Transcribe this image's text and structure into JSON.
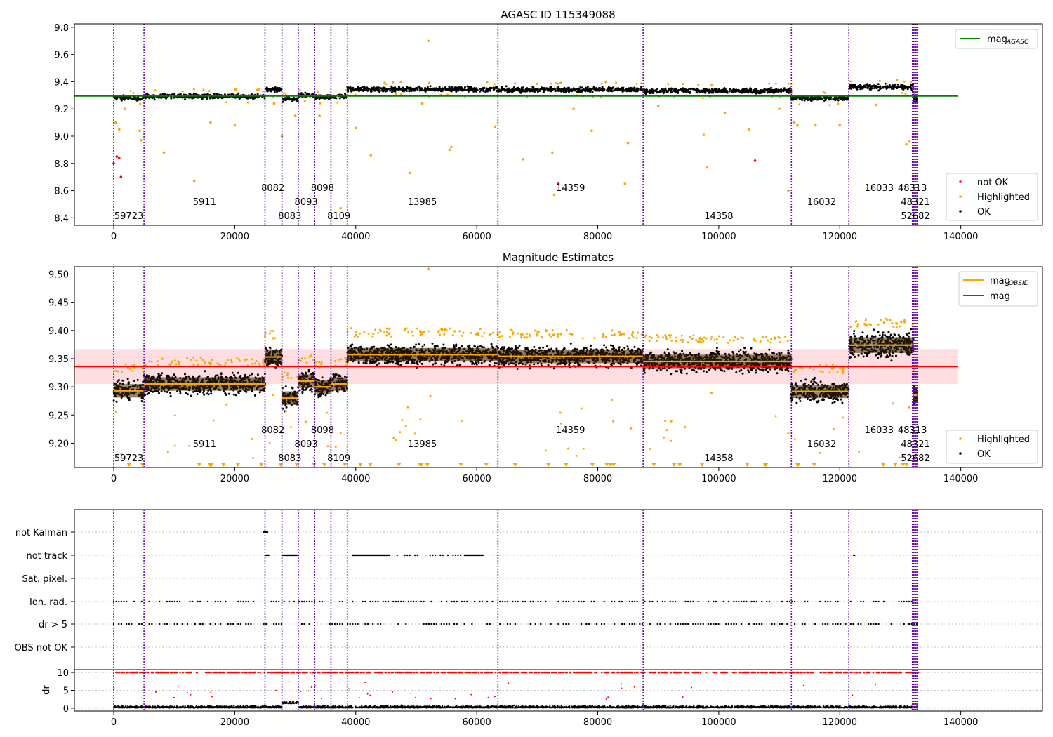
{
  "chart_data": [
    {
      "type": "scatter",
      "title": "AGASC ID 115349088",
      "xlim": [
        -6500,
        153500
      ],
      "ylim": [
        8.345,
        9.825
      ],
      "x_ticks": [
        0,
        20000,
        40000,
        60000,
        80000,
        100000,
        120000,
        140000
      ],
      "x_tick_labels": [
        "0",
        "20000",
        "40000",
        "60000",
        "80000",
        "100000",
        "120000",
        "140000"
      ],
      "y_ticks": [
        8.4,
        8.6,
        8.8,
        9.0,
        9.2,
        9.4,
        9.6,
        9.8
      ],
      "y_tick_labels": [
        "8.4",
        "8.6",
        "8.8",
        "9.0",
        "9.2",
        "9.4",
        "9.6",
        "9.8"
      ],
      "legend_upper": {
        "placement": "top-right",
        "entries": [
          {
            "label": "mag",
            "sub": "AGASC",
            "color": "#008000"
          }
        ]
      },
      "legend_lower": {
        "placement": "bottom-right",
        "entries": [
          {
            "label": "not OK",
            "color": "#ff0000"
          },
          {
            "label": "Highlighted",
            "color": "#ffa500"
          },
          {
            "label": "OK",
            "color": "#000000"
          }
        ]
      },
      "agasc_mag": 9.295,
      "agasc_line_x": [
        -6500,
        139500
      ],
      "segments": [
        {
          "x0": 0,
          "x1": 5000,
          "mean": 9.293,
          "spread": 0.012
        },
        {
          "x0": 5000,
          "x1": 25000,
          "mean": 9.305,
          "spread": 0.012
        },
        {
          "x0": 25000,
          "x1": 27800,
          "mean": 9.353,
          "spread": 0.012
        },
        {
          "x0": 27800,
          "x1": 30500,
          "mean": 9.28,
          "spread": 0.012
        },
        {
          "x0": 30500,
          "x1": 33200,
          "mean": 9.31,
          "spread": 0.012
        },
        {
          "x0": 33200,
          "x1": 35900,
          "mean": 9.3,
          "spread": 0.012
        },
        {
          "x0": 35900,
          "x1": 38600,
          "mean": 9.305,
          "spread": 0.012
        },
        {
          "x0": 38600,
          "x1": 63500,
          "mean": 9.357,
          "spread": 0.012
        },
        {
          "x0": 63500,
          "x1": 87500,
          "mean": 9.354,
          "spread": 0.012
        },
        {
          "x0": 87500,
          "x1": 112000,
          "mean": 9.345,
          "spread": 0.012
        },
        {
          "x0": 112000,
          "x1": 121500,
          "mean": 9.292,
          "spread": 0.012
        },
        {
          "x0": 121500,
          "x1": 132200,
          "mean": 9.374,
          "spread": 0.014
        },
        {
          "x0": 132200,
          "x1": 132800,
          "mean": 9.285,
          "spread": 0.012
        }
      ],
      "not_ok_points": [
        {
          "x": 0,
          "y": 8.8
        },
        {
          "x": 500,
          "y": 8.85
        },
        {
          "x": 900,
          "y": 8.84
        },
        {
          "x": 1200,
          "y": 8.7
        },
        {
          "x": 73500,
          "y": 8.65
        },
        {
          "x": 106000,
          "y": 8.82
        }
      ],
      "highlighted_points": [
        {
          "x": 52000,
          "y": 9.7
        },
        {
          "x": 300,
          "y": 9.1
        },
        {
          "x": 900,
          "y": 9.05
        },
        {
          "x": 1800,
          "y": 9.2
        },
        {
          "x": 4300,
          "y": 9.04
        },
        {
          "x": 4500,
          "y": 8.97
        },
        {
          "x": 8300,
          "y": 8.88
        },
        {
          "x": 13300,
          "y": 8.67
        },
        {
          "x": 16000,
          "y": 9.1
        },
        {
          "x": 20000,
          "y": 9.08
        },
        {
          "x": 26500,
          "y": 9.24
        },
        {
          "x": 27800,
          "y": 9.0
        },
        {
          "x": 30000,
          "y": 9.15
        },
        {
          "x": 34000,
          "y": 9.15
        },
        {
          "x": 37500,
          "y": 8.47
        },
        {
          "x": 40000,
          "y": 9.06
        },
        {
          "x": 42500,
          "y": 8.86
        },
        {
          "x": 49000,
          "y": 8.73
        },
        {
          "x": 51000,
          "y": 9.24
        },
        {
          "x": 55500,
          "y": 8.9
        },
        {
          "x": 55800,
          "y": 8.92
        },
        {
          "x": 63000,
          "y": 9.07
        },
        {
          "x": 67700,
          "y": 8.83
        },
        {
          "x": 72500,
          "y": 8.88
        },
        {
          "x": 72800,
          "y": 8.57
        },
        {
          "x": 76000,
          "y": 9.2
        },
        {
          "x": 79000,
          "y": 9.04
        },
        {
          "x": 84500,
          "y": 8.65
        },
        {
          "x": 85000,
          "y": 8.95
        },
        {
          "x": 90000,
          "y": 9.22
        },
        {
          "x": 97500,
          "y": 9.01
        },
        {
          "x": 98000,
          "y": 8.77
        },
        {
          "x": 101000,
          "y": 9.17
        },
        {
          "x": 105000,
          "y": 9.05
        },
        {
          "x": 110000,
          "y": 9.2
        },
        {
          "x": 112500,
          "y": 9.1
        },
        {
          "x": 113000,
          "y": 9.08
        },
        {
          "x": 116000,
          "y": 9.08
        },
        {
          "x": 120000,
          "y": 9.08
        },
        {
          "x": 126000,
          "y": 9.23
        },
        {
          "x": 131000,
          "y": 8.94
        },
        {
          "x": 131500,
          "y": 8.96
        },
        {
          "x": 111500,
          "y": 8.6
        }
      ],
      "obsid_labels": [
        {
          "text": "59723",
          "x": 2500,
          "row": 3
        },
        {
          "text": "5911",
          "x": 15000,
          "row": 2
        },
        {
          "text": "8082",
          "x": 26300,
          "row": 1
        },
        {
          "text": "8083",
          "x": 29100,
          "row": 3
        },
        {
          "text": "8093",
          "x": 31800,
          "row": 2
        },
        {
          "text": "8098",
          "x": 34500,
          "row": 1
        },
        {
          "text": "8109",
          "x": 37200,
          "row": 3
        },
        {
          "text": "13985",
          "x": 51000,
          "row": 2
        },
        {
          "text": "14359",
          "x": 75500,
          "row": 1
        },
        {
          "text": "14358",
          "x": 100000,
          "row": 3
        },
        {
          "text": "16032",
          "x": 117000,
          "row": 2
        },
        {
          "text": "16033",
          "x": 126500,
          "row": 1
        },
        {
          "text": "48313",
          "x": 132000,
          "row": 1
        },
        {
          "text": "48321",
          "x": 132500,
          "row": 2
        },
        {
          "text": "52682",
          "x": 132500,
          "row": 3
        }
      ]
    },
    {
      "type": "scatter",
      "title": "Magnitude Estimates",
      "xlim": [
        -6500,
        153500
      ],
      "ylim": [
        9.157,
        9.513
      ],
      "x_ticks": [
        0,
        20000,
        40000,
        60000,
        80000,
        100000,
        120000,
        140000
      ],
      "x_tick_labels": [
        "0",
        "20000",
        "40000",
        "60000",
        "80000",
        "100000",
        "120000",
        "140000"
      ],
      "y_ticks": [
        9.2,
        9.25,
        9.3,
        9.35,
        9.4,
        9.45,
        9.5
      ],
      "y_tick_labels": [
        "9.20",
        "9.25",
        "9.30",
        "9.35",
        "9.40",
        "9.45",
        "9.50"
      ],
      "legend_upper": {
        "placement": "top-right",
        "entries": [
          {
            "label": "mag",
            "sub": "OBSID",
            "color": "#ffa500"
          },
          {
            "label": "mag",
            "color": "#ff0000"
          }
        ]
      },
      "legend_lower": {
        "placement": "bottom-right",
        "entries": [
          {
            "label": "Highlighted",
            "color": "#ffa500"
          },
          {
            "label": "OK",
            "color": "#000000"
          }
        ]
      },
      "mag_mean": 9.336,
      "mag_band": [
        9.305,
        9.367
      ],
      "mag_line_x": [
        -6500,
        139500
      ],
      "segment_mean_color": "#ffa500",
      "obsid_labels": [
        {
          "text": "59723",
          "x": 2500,
          "row": 3
        },
        {
          "text": "5911",
          "x": 15000,
          "row": 2
        },
        {
          "text": "8082",
          "x": 26300,
          "row": 1
        },
        {
          "text": "8083",
          "x": 29100,
          "row": 3
        },
        {
          "text": "8093",
          "x": 31800,
          "row": 2
        },
        {
          "text": "8098",
          "x": 34500,
          "row": 1
        },
        {
          "text": "8109",
          "x": 37200,
          "row": 3
        },
        {
          "text": "13985",
          "x": 51000,
          "row": 2
        },
        {
          "text": "14359",
          "x": 75500,
          "row": 1
        },
        {
          "text": "14358",
          "x": 100000,
          "row": 3
        },
        {
          "text": "16032",
          "x": 117000,
          "row": 2
        },
        {
          "text": "16033",
          "x": 126500,
          "row": 1
        },
        {
          "text": "48313",
          "x": 132000,
          "row": 1
        },
        {
          "text": "48321",
          "x": 132500,
          "row": 2
        },
        {
          "text": "52682",
          "x": 132500,
          "row": 3
        }
      ]
    },
    {
      "type": "scatter",
      "title": "",
      "xlim": [
        -6500,
        153500
      ],
      "categories": [
        "not Kalman",
        "not track",
        "Sat. pixel.",
        "Ion. rad.",
        "dr > 5",
        "OBS not OK"
      ],
      "flag_bands": {
        "not Kalman": [
          [
            24800,
            25400
          ]
        ],
        "not track": [
          [
            25000,
            25600
          ],
          [
            27800,
            30500
          ],
          [
            39500,
            45500
          ],
          [
            46000,
            57500
          ],
          [
            58000,
            61000
          ],
          [
            63500,
            63600
          ],
          [
            122300,
            122500
          ]
        ],
        "Sat. pixel.": [],
        "Ion. rad.": [
          [
            0,
            133000
          ]
        ],
        "dr > 5": [
          [
            0,
            133000
          ]
        ],
        "OBS not OK": []
      },
      "dr_panel": {
        "ylabel": "dr",
        "ylim": [
          -0.8,
          10.8
        ],
        "y_ticks": [
          0,
          5,
          10
        ],
        "y_tick_labels": [
          "0",
          "5",
          "10"
        ],
        "clip_value": 10
      }
    }
  ],
  "obsid_boundaries": [
    0,
    5000,
    25000,
    27800,
    30500,
    33200,
    35900,
    38600,
    63500,
    87500,
    112000,
    121500,
    132000,
    132200,
    132400,
    132600,
    132800
  ],
  "colors": {
    "ok": "#000000",
    "highlighted": "#ffa500",
    "not_ok": "#ff0000",
    "agasc_line": "#008000",
    "mag_line": "#ff0000",
    "mag_band": "#ffdde1",
    "boundary": "#6a0dad",
    "grid": "#b0b0b0"
  }
}
